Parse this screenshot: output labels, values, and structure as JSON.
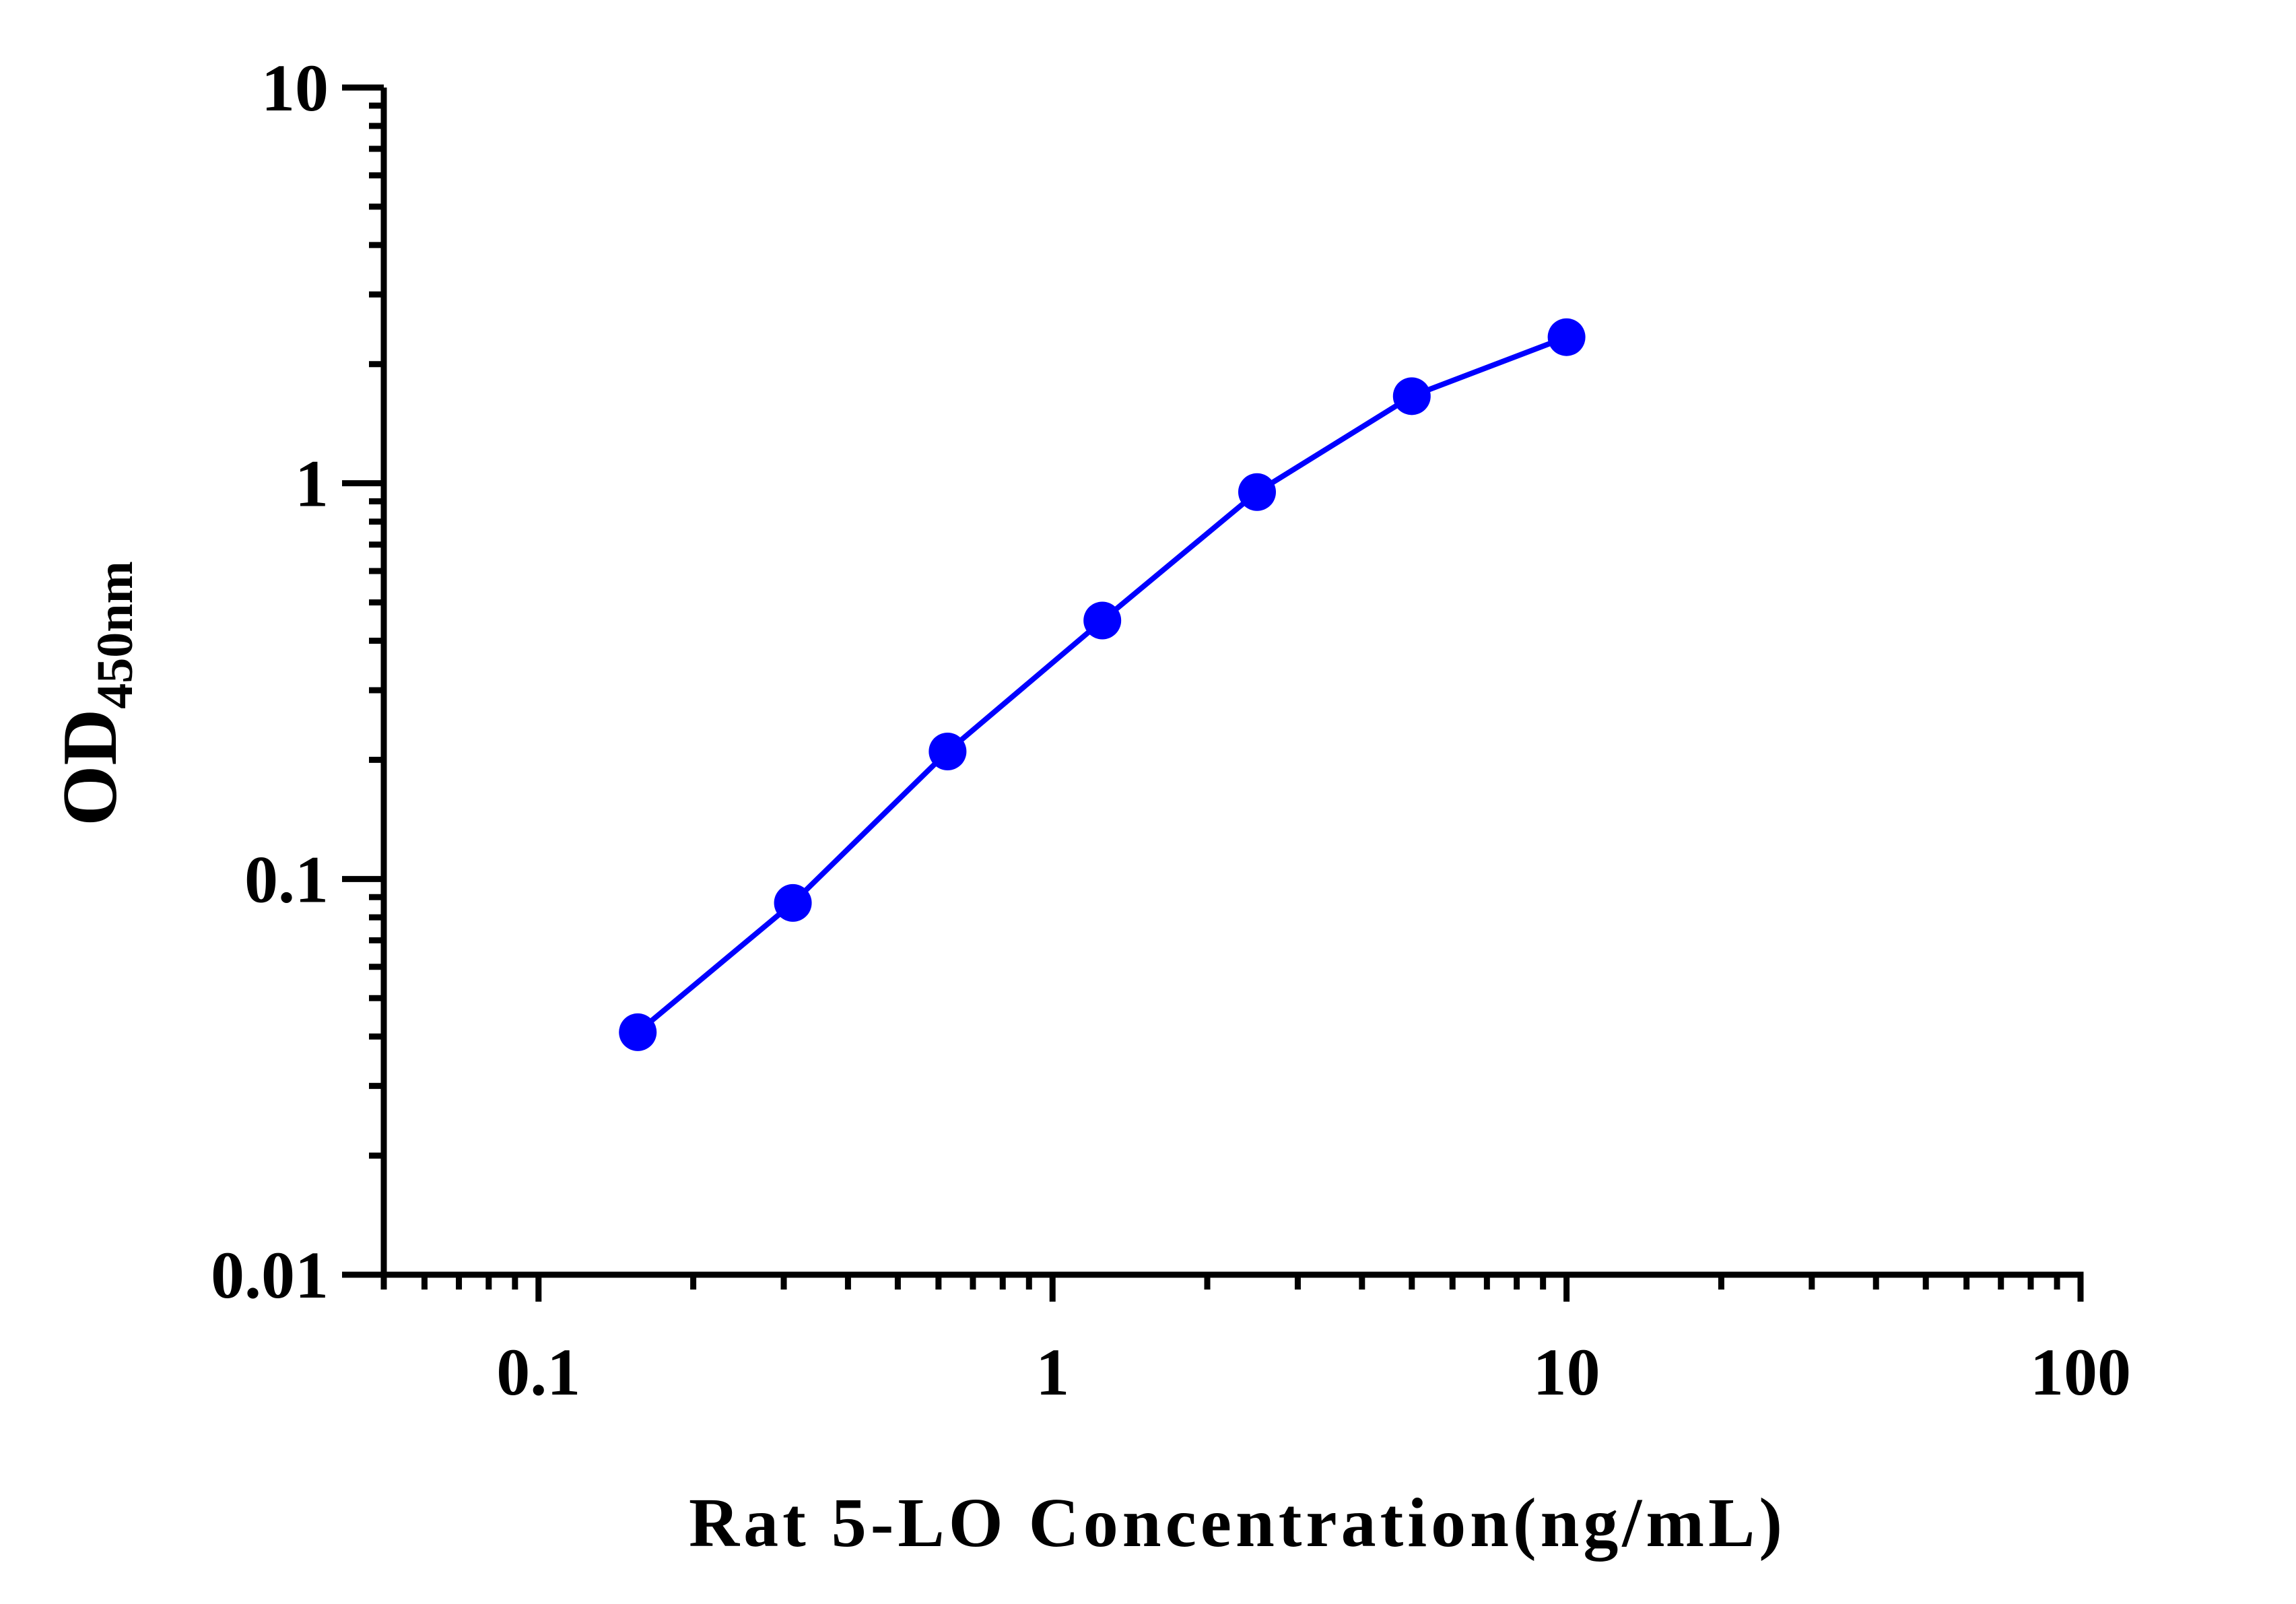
{
  "chart_data": {
    "type": "line",
    "title": "",
    "xlabel": "Rat 5-LO Concentration(ng/mL)",
    "ylabel_main": "OD",
    "ylabel_sub": "450nm",
    "x_scale": "log",
    "y_scale": "log",
    "xlim": [
      0.05,
      100
    ],
    "ylim": [
      0.01,
      10
    ],
    "x_ticks": [
      0.1,
      1,
      10,
      100
    ],
    "x_tick_labels": [
      "0.1",
      "1",
      "10",
      "100"
    ],
    "y_ticks": [
      0.01,
      0.1,
      1,
      10
    ],
    "y_tick_labels": [
      "0.01",
      "0.1",
      "1",
      "10"
    ],
    "grid": false,
    "legend": "none",
    "series": [
      {
        "color": "#0000ff",
        "x": [
          0.156,
          0.3125,
          0.625,
          1.25,
          2.5,
          5,
          10
        ],
        "y": [
          0.041,
          0.087,
          0.21,
          0.45,
          0.95,
          1.66,
          2.34
        ]
      }
    ]
  }
}
